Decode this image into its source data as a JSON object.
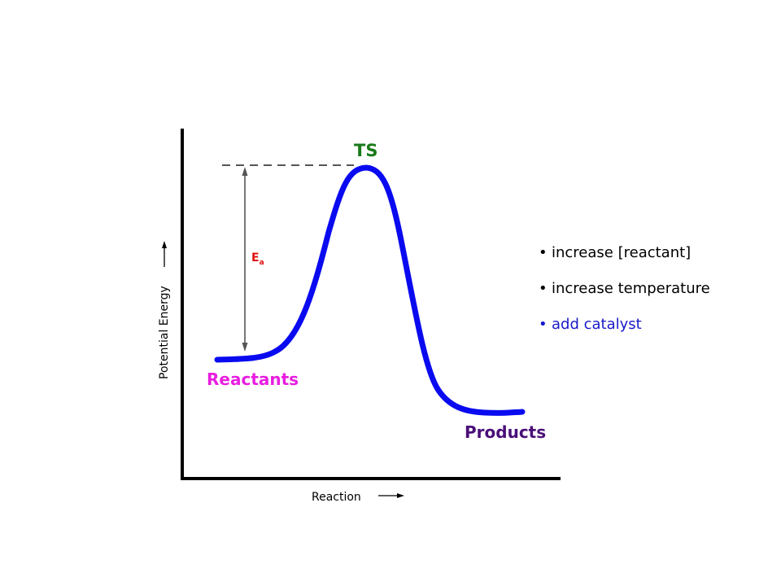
{
  "diagram": {
    "transition_state_label": "TS",
    "activation_energy_symbol": "E",
    "activation_energy_subscript": "a",
    "reactants_label": "Reactants",
    "products_label": "Products",
    "y_axis_label": "Potential Energy",
    "x_axis_label": "Reaction",
    "colors": {
      "curve": "#0a0af0",
      "axes": "#000000",
      "transition_state": "#1a7a1a",
      "reactants": "#e81ee0",
      "products": "#4a0f78",
      "activation_energy": "#e01010",
      "dashed_line": "#555555",
      "ea_arrow": "#555555"
    }
  },
  "factors": {
    "bullet": "•",
    "items": [
      {
        "text": "increase [reactant]",
        "color": "#000000"
      },
      {
        "text": "increase temperature",
        "color": "#000000"
      },
      {
        "text": "add catalyst",
        "color": "#1818c8"
      }
    ]
  }
}
